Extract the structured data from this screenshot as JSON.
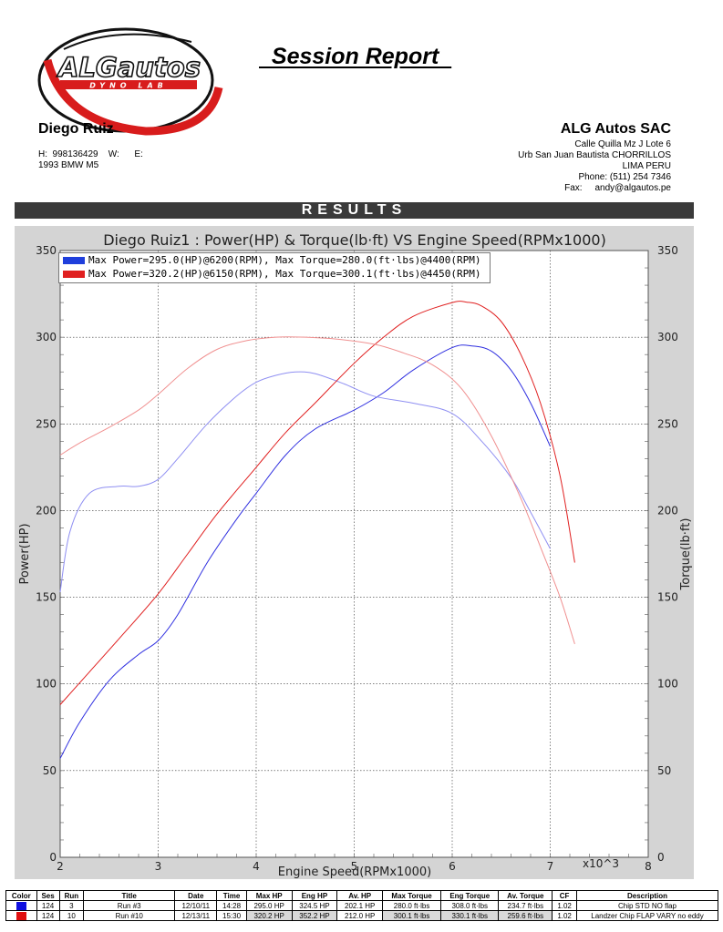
{
  "header": {
    "logo_text": "ALGautos",
    "logo_subtext": "DYNO LAB",
    "report_title": "  Session Report  ",
    "customer_name": "Diego Ruiz",
    "contact_line": "H:  998136429    W:      E:",
    "vehicle": "1993 BMW M5",
    "company_name": "ALG Autos SAC",
    "address_lines": [
      "Calle Quilla Mz J Lote 6",
      "Urb San Juan Bautista CHORRILLOS",
      "LIMA PERU",
      "Phone: (511) 254 7346",
      "Fax:     andy@algautos.pe"
    ],
    "results_label": "RESULTS"
  },
  "chart_data": {
    "type": "line",
    "title": "Diego Ruiz1 : Power(HP) & Torque(lb·ft) VS Engine Speed(RPMx1000)",
    "xlabel": "Engine Speed(RPMx1000)",
    "ylabel_left": "Power(HP)",
    "ylabel_right": "Torque(lb·ft)",
    "x_multiplier_label": "x10^3",
    "xlim": [
      2,
      8
    ],
    "ylim": [
      0,
      350
    ],
    "x_ticks": [
      "2",
      "3",
      "4",
      "5",
      "6",
      "7",
      "8"
    ],
    "y_ticks": [
      "0",
      "50",
      "100",
      "150",
      "200",
      "250",
      "300",
      "350"
    ],
    "grid": true,
    "legend_position": "top-left",
    "legend": [
      {
        "label": "Max Power=295.0(HP)@6200(RPM), Max Torque=280.0(ft·lbs)@4400(RPM)",
        "color": "#1f3fdc"
      },
      {
        "label": "Max Power=320.2(HP)@6150(RPM), Max Torque=300.1(ft·lbs)@4450(RPM)",
        "color": "#e02020"
      }
    ],
    "series": [
      {
        "run": "Run #3",
        "measure": "power",
        "color": "#3030e0",
        "x": [
          2.0,
          2.2,
          2.5,
          2.8,
          3.0,
          3.2,
          3.5,
          3.8,
          4.0,
          4.3,
          4.6,
          5.0,
          5.3,
          5.6,
          6.0,
          6.2,
          6.4,
          6.6,
          6.8,
          7.0
        ],
        "y": [
          57,
          78,
          102,
          117,
          125,
          140,
          170,
          195,
          210,
          232,
          247,
          258,
          268,
          281,
          294,
          295,
          292,
          281,
          262,
          237
        ]
      },
      {
        "run": "Run #3",
        "measure": "torque",
        "color": "#8f8ff2",
        "x": [
          2.0,
          2.1,
          2.3,
          2.6,
          2.8,
          3.0,
          3.2,
          3.5,
          3.8,
          4.0,
          4.2,
          4.4,
          4.6,
          4.9,
          5.2,
          5.6,
          6.0,
          6.3,
          6.6,
          6.8,
          7.0
        ],
        "y": [
          153,
          188,
          210,
          214,
          214,
          218,
          230,
          250,
          266,
          274,
          278,
          280,
          279,
          273,
          266,
          262,
          256,
          240,
          219,
          199,
          178
        ]
      },
      {
        "run": "Run #10",
        "measure": "power",
        "color": "#e02020",
        "x": [
          2.0,
          2.3,
          2.6,
          3.0,
          3.3,
          3.6,
          4.0,
          4.3,
          4.6,
          5.0,
          5.3,
          5.6,
          6.0,
          6.15,
          6.3,
          6.5,
          6.7,
          6.9,
          7.1,
          7.25
        ],
        "y": [
          88,
          107,
          126,
          152,
          175,
          198,
          225,
          245,
          262,
          285,
          300,
          312,
          320,
          320.2,
          318,
          309,
          290,
          262,
          220,
          170
        ]
      },
      {
        "run": "Run #10",
        "measure": "torque",
        "color": "#f09090",
        "x": [
          2.0,
          2.2,
          2.5,
          2.8,
          3.0,
          3.3,
          3.6,
          3.9,
          4.2,
          4.45,
          4.8,
          5.2,
          5.5,
          5.8,
          6.1,
          6.4,
          6.7,
          6.9,
          7.1,
          7.25
        ],
        "y": [
          232,
          239,
          248,
          258,
          267,
          282,
          293,
          298,
          300,
          300.1,
          299,
          296,
          291,
          284,
          270,
          243,
          207,
          179,
          150,
          123
        ]
      }
    ]
  },
  "table": {
    "headers": [
      "Color",
      "Ses",
      "Run",
      "Title",
      "Date",
      "Time",
      "Max HP",
      "Eng HP",
      "Av. HP",
      "Max Torque",
      "Eng Torque",
      "Av. Torque",
      "CF",
      "Description"
    ],
    "rows": [
      {
        "color": "#1010e0",
        "cells": [
          "124",
          "3",
          "Run #3",
          "12/10/11",
          "14:28",
          "295.0 HP",
          "324.5 HP",
          "202.1 HP",
          "280.0 ft·lbs",
          "308.0 ft·lbs",
          "234.7 ft·lbs",
          "1.02",
          "Chip STD  NO flap"
        ]
      },
      {
        "color": "#e01010",
        "cells": [
          "124",
          "10",
          "Run #10",
          "12/13/11",
          "15:30",
          "320.2 HP",
          "352.2 HP",
          "212.0 HP",
          "300.1 ft·lbs",
          "330.1 ft·lbs",
          "259.6 ft·lbs",
          "1.02",
          "Landzer Chip FLAP VARY no eddy"
        ]
      }
    ]
  }
}
